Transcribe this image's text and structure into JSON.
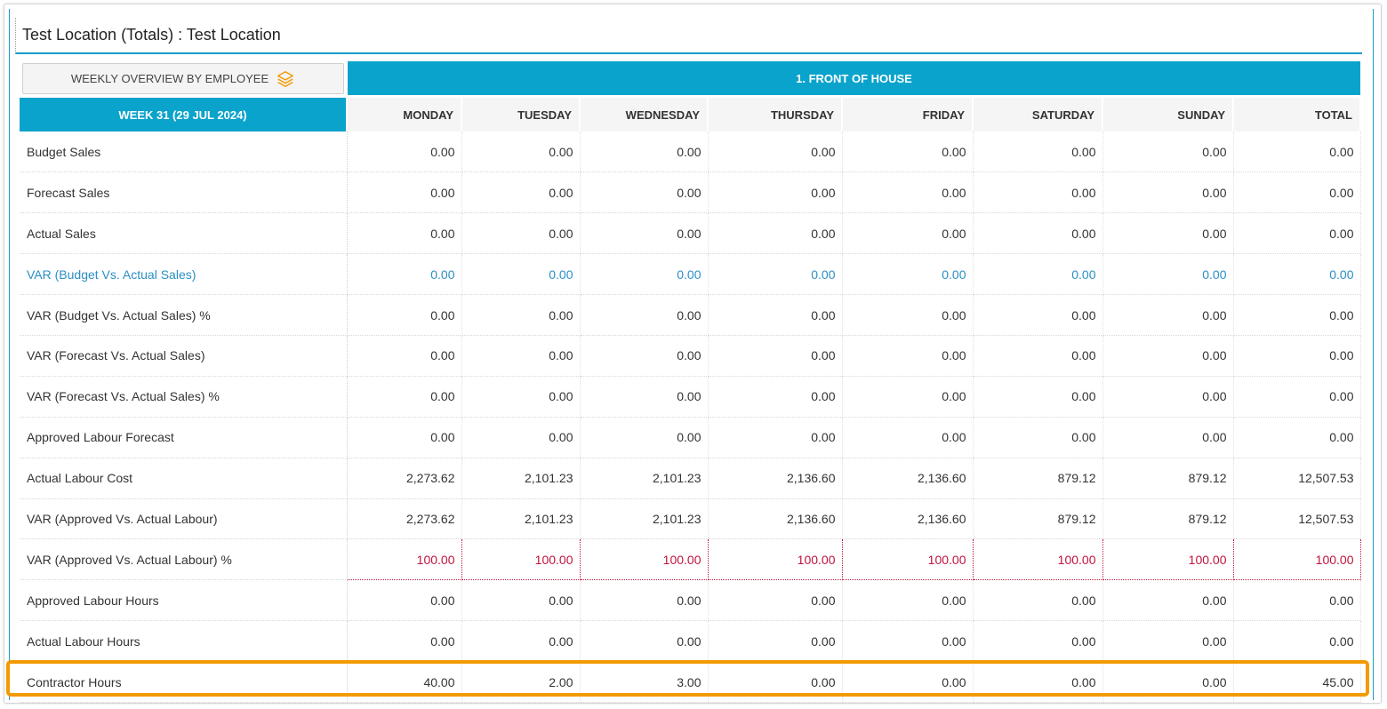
{
  "header": {
    "title": "Test Location (Totals) : Test Location"
  },
  "overview_button": {
    "label": "WEEKLY OVERVIEW BY EMPLOYEE",
    "icon": "layers-icon"
  },
  "section": {
    "title": "1. FRONT OF HOUSE"
  },
  "colors": {
    "accent": "#0aa3cc",
    "highlight": "#f39a00",
    "negative": "#c0143c",
    "link": "#2b8fc4"
  },
  "table": {
    "week_label": "WEEK 31 (29 JUL 2024)",
    "columns": [
      "MONDAY",
      "TUESDAY",
      "WEDNESDAY",
      "THURSDAY",
      "FRIDAY",
      "SATURDAY",
      "SUNDAY",
      "TOTAL"
    ],
    "rows": [
      {
        "label": "Budget Sales",
        "values": [
          "0.00",
          "0.00",
          "0.00",
          "0.00",
          "0.00",
          "0.00",
          "0.00",
          "0.00"
        ]
      },
      {
        "label": "Forecast Sales",
        "values": [
          "0.00",
          "0.00",
          "0.00",
          "0.00",
          "0.00",
          "0.00",
          "0.00",
          "0.00"
        ]
      },
      {
        "label": "Actual Sales",
        "values": [
          "0.00",
          "0.00",
          "0.00",
          "0.00",
          "0.00",
          "0.00",
          "0.00",
          "0.00"
        ]
      },
      {
        "label": "VAR (Budget Vs. Actual Sales)",
        "values": [
          "0.00",
          "0.00",
          "0.00",
          "0.00",
          "0.00",
          "0.00",
          "0.00",
          "0.00"
        ]
      },
      {
        "label": "VAR (Budget Vs. Actual Sales) %",
        "values": [
          "0.00",
          "0.00",
          "0.00",
          "0.00",
          "0.00",
          "0.00",
          "0.00",
          "0.00"
        ]
      },
      {
        "label": "VAR (Forecast Vs. Actual Sales)",
        "values": [
          "0.00",
          "0.00",
          "0.00",
          "0.00",
          "0.00",
          "0.00",
          "0.00",
          "0.00"
        ]
      },
      {
        "label": "VAR (Forecast Vs. Actual Sales) %",
        "values": [
          "0.00",
          "0.00",
          "0.00",
          "0.00",
          "0.00",
          "0.00",
          "0.00",
          "0.00"
        ]
      },
      {
        "label": "Approved Labour Forecast",
        "values": [
          "0.00",
          "0.00",
          "0.00",
          "0.00",
          "0.00",
          "0.00",
          "0.00",
          "0.00"
        ]
      },
      {
        "label": "Actual Labour Cost",
        "values": [
          "2,273.62",
          "2,101.23",
          "2,101.23",
          "2,136.60",
          "2,136.60",
          "879.12",
          "879.12",
          "12,507.53"
        ]
      },
      {
        "label": "VAR (Approved Vs. Actual Labour)",
        "values": [
          "2,273.62",
          "2,101.23",
          "2,101.23",
          "2,136.60",
          "2,136.60",
          "879.12",
          "879.12",
          "12,507.53"
        ]
      },
      {
        "label": "VAR (Approved Vs. Actual Labour) %",
        "values": [
          "100.00",
          "100.00",
          "100.00",
          "100.00",
          "100.00",
          "100.00",
          "100.00",
          "100.00"
        ]
      },
      {
        "label": "Approved Labour Hours",
        "values": [
          "0.00",
          "0.00",
          "0.00",
          "0.00",
          "0.00",
          "0.00",
          "0.00",
          "0.00"
        ]
      },
      {
        "label": "Actual Labour Hours",
        "values": [
          "0.00",
          "0.00",
          "0.00",
          "0.00",
          "0.00",
          "0.00",
          "0.00",
          "0.00"
        ]
      },
      {
        "label": "Contractor Hours",
        "values": [
          "40.00",
          "2.00",
          "3.00",
          "0.00",
          "0.00",
          "0.00",
          "0.00",
          "45.00"
        ]
      }
    ]
  }
}
